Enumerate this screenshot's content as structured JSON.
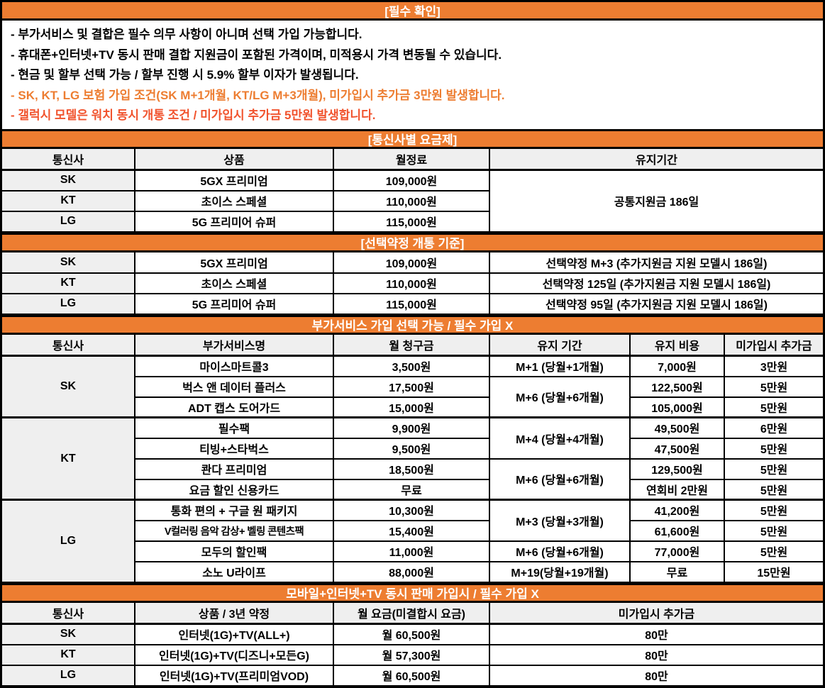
{
  "colors": {
    "banner_orange": "#ED7D31",
    "note_orange": "#ED7D31",
    "note_red": "#F1532D",
    "cell_gray": "#EFEFEF",
    "border_black": "#000000"
  },
  "notice": {
    "title": "[필수 확인]",
    "items": [
      {
        "text": "- 부가서비스 및 결합은 필수 의무 사항이 아니며 선택 가입 가능합니다.",
        "color": "black"
      },
      {
        "text": "- 휴대폰+인터넷+TV 동시 판매 결합 지원금이 포함된 가격이며, 미적용시 가격 변동될 수 있습니다.",
        "color": "black"
      },
      {
        "text": "- 현금 및 할부 선택 가능 / 할부 진행 시 5.9% 할부 이자가 발생됩니다.",
        "color": "black"
      },
      {
        "text": "- SK, KT, LG 보험 가입 조건(SK M+1개월, KT/LG M+3개월), 미가입시 추가금 3만원 발생합니다.",
        "color": "orange"
      },
      {
        "text": "- 갤럭시 모델은 워치 동시 개통 조건 / 미가입시 추가금 5만원 발생합니다.",
        "color": "red"
      }
    ]
  },
  "plans": {
    "title": "[통신사별 요금제]",
    "columns": [
      "통신사",
      "상품",
      "월정료",
      "유지기간"
    ],
    "rows": [
      [
        "SK",
        "5GX 프리미엄",
        "109,000원"
      ],
      [
        "KT",
        "초이스 스페셜",
        "110,000원"
      ],
      [
        "LG",
        "5G 프리미어 슈퍼",
        "115,000원"
      ]
    ],
    "shared_period": "공통지원금 186일"
  },
  "select_contract": {
    "title": "[선택약정 개통 기준]",
    "rows": [
      [
        "SK",
        "5GX 프리미엄",
        "109,000원",
        "선택약정 M+3 (추가지원금 지원 모델시 186일)"
      ],
      [
        "KT",
        "초이스 스페셜",
        "110,000원",
        "선택약정 125일 (추가지원금 지원 모델시 186일)"
      ],
      [
        "LG",
        "5G 프리미어 슈퍼",
        "115,000원",
        "선택약정 95일 (추가지원금 지원 모델시 186일)"
      ]
    ]
  },
  "addons": {
    "title": "부가서비스 가입 선택 가능 / 필수 가입 X",
    "columns": [
      "통신사",
      "부가서비스명",
      "월 청구금",
      "유지 기간",
      "유지 비용",
      "미가입시 추가금"
    ],
    "carriers": [
      "SK",
      "KT",
      "LG"
    ],
    "rows": [
      {
        "name": "마이스마트콜3",
        "fee": "3,500원",
        "period": "M+1 (당월+1개월)",
        "cost": "7,000원",
        "penalty": "3만원"
      },
      {
        "name": "벅스 앤 데이터 플러스",
        "fee": "17,500원",
        "period": "M+6 (당월+6개월)",
        "cost": "122,500원",
        "penalty": "5만원"
      },
      {
        "name": "ADT 캡스 도어가드",
        "fee": "15,000원",
        "cost": "105,000원",
        "penalty": "5만원"
      },
      {
        "name": "필수팩",
        "fee": "9,900원",
        "period": "M+4 (당월+4개월)",
        "cost": "49,500원",
        "penalty": "6만원"
      },
      {
        "name": "티빙+스타벅스",
        "fee": "9,500원",
        "cost": "47,500원",
        "penalty": "5만원"
      },
      {
        "name": "콴다 프리미엄",
        "fee": "18,500원",
        "period": "M+6 (당월+6개월)",
        "cost": "129,500원",
        "penalty": "5만원"
      },
      {
        "name": "요금 할인 신용카드",
        "fee": "무료",
        "cost": "연회비 2만원",
        "penalty": "5만원"
      },
      {
        "name": "통화 편의 + 구글 원 패키지",
        "fee": "10,300원",
        "period": "M+3 (당월+3개월)",
        "cost": "41,200원",
        "penalty": "5만원"
      },
      {
        "name": "V컬러링 음악 감상+ 벨링 콘텐츠팩",
        "fee": "15,400원",
        "cost": "61,600원",
        "penalty": "5만원"
      },
      {
        "name": "모두의 할인팩",
        "fee": "11,000원",
        "period": "M+6 (당월+6개월)",
        "cost": "77,000원",
        "penalty": "5만원"
      },
      {
        "name": "소노 U라이프",
        "fee": "88,000원",
        "period": "M+19(당월+19개월)",
        "cost": "무료",
        "penalty": "15만원"
      }
    ]
  },
  "bundle": {
    "title": "모바일+인터넷+TV 동시 판매 가입시 / 필수 가입 X",
    "columns": [
      "통신사",
      "상품 / 3년 약정",
      "월 요금(미결합시 요금)",
      "미가입시 추가금"
    ],
    "rows": [
      [
        "SK",
        "인터넷(1G)+TV(ALL+)",
        "월 60,500원",
        "80만"
      ],
      [
        "KT",
        "인터넷(1G)+TV(디즈니+모든G)",
        "월 57,300원",
        "80만"
      ],
      [
        "LG",
        "인터넷(1G)+TV(프리미엄VOD)",
        "월 60,500원",
        "80만"
      ]
    ]
  }
}
